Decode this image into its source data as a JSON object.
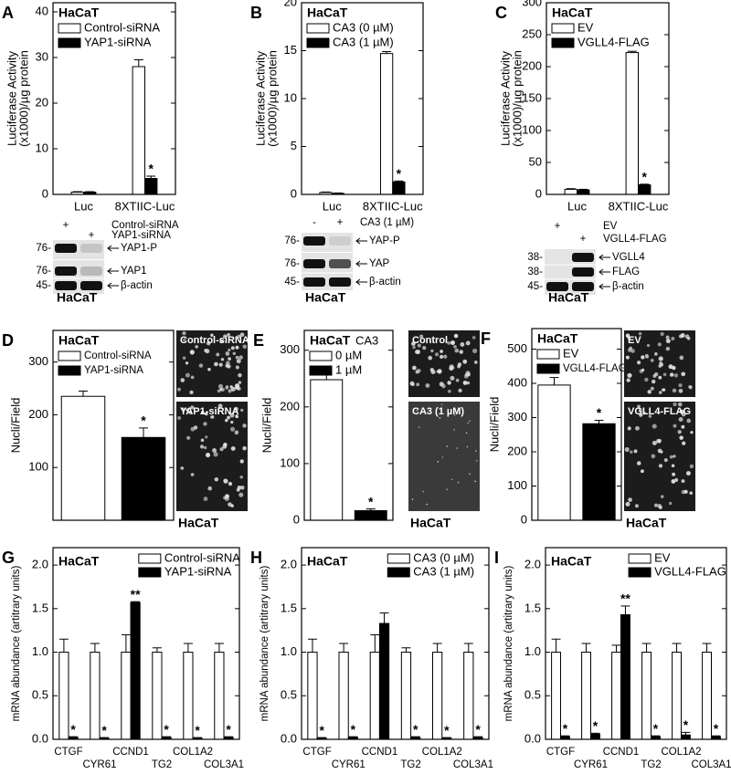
{
  "chart_data": [
    {
      "panel": "A",
      "type": "bar",
      "title": "HaCaT",
      "ylabel": [
        "Luciferase Activity",
        "(x1000)/µg protein"
      ],
      "categories": [
        "Luc",
        "8XTIIC-Luc"
      ],
      "series": [
        {
          "name": "Control-siRNA",
          "color": "#ffffff",
          "values": [
            0.5,
            28
          ],
          "errors": [
            0.1,
            1.5
          ],
          "marks": [
            null,
            null
          ]
        },
        {
          "name": "YAP1-siRNA",
          "color": "#000000",
          "values": [
            0.5,
            3.5
          ],
          "errors": [
            0.1,
            0.5
          ],
          "marks": [
            null,
            "*"
          ]
        }
      ],
      "ylim": [
        0,
        42
      ],
      "yticks": [
        0,
        10,
        20,
        30,
        40
      ],
      "legend": "upper left"
    },
    {
      "panel": "B",
      "type": "bar",
      "title": "HaCaT",
      "ylabel": [
        "Luciferase Activity",
        "(x1000)/µg protein"
      ],
      "categories": [
        "Luc",
        "8XTIIC-Luc"
      ],
      "series": [
        {
          "name": "CA3 (0 µM)",
          "color": "#ffffff",
          "values": [
            0.2,
            14.7
          ],
          "errors": [
            0.05,
            0.2
          ],
          "marks": [
            null,
            null
          ]
        },
        {
          "name": "CA3 (1 µM)",
          "color": "#000000",
          "values": [
            0.1,
            1.3
          ],
          "errors": [
            0.05,
            0.1
          ],
          "marks": [
            null,
            "*"
          ]
        }
      ],
      "ylim": [
        0,
        20
      ],
      "yticks": [
        0,
        5,
        10,
        15,
        20
      ],
      "legend": "upper left"
    },
    {
      "panel": "C",
      "type": "bar",
      "title": "HaCaT",
      "ylabel": [
        "Luciferase Activity",
        "(x1000)/µg protein"
      ],
      "categories": [
        "Luc",
        "8XTIIC-Luc"
      ],
      "series": [
        {
          "name": "EV",
          "color": "#ffffff",
          "values": [
            8,
            222
          ],
          "errors": [
            1,
            2
          ],
          "marks": [
            null,
            null
          ]
        },
        {
          "name": "VGLL4-FLAG",
          "color": "#000000",
          "values": [
            7,
            15
          ],
          "errors": [
            1,
            1
          ],
          "marks": [
            null,
            "*"
          ]
        }
      ],
      "ylim": [
        0,
        300
      ],
      "yticks": [
        0,
        50,
        100,
        150,
        200,
        250,
        300
      ],
      "legend": "upper left"
    },
    {
      "panel": "D",
      "type": "bar",
      "title": "HaCaT",
      "ylabel": [
        "Nucli/Field"
      ],
      "categories": [
        null
      ],
      "series": [
        {
          "name": "Control-siRNA",
          "color": "#ffffff",
          "values": [
            235
          ],
          "errors": [
            10
          ],
          "marks": [
            null
          ]
        },
        {
          "name": "YAP1-siRNA",
          "color": "#000000",
          "values": [
            157
          ],
          "errors": [
            18
          ],
          "marks": [
            "*"
          ]
        }
      ],
      "ylim": [
        0,
        360
      ],
      "yticks": [
        100,
        200,
        300
      ],
      "legend": "upper left"
    },
    {
      "panel": "E",
      "type": "bar",
      "title": "HaCaT",
      "legend_title": "CA3",
      "ylabel": [
        "Nucli/Field"
      ],
      "categories": [
        null
      ],
      "series": [
        {
          "name": "0 µM",
          "color": "#ffffff",
          "values": [
            248
          ],
          "errors": [
            10
          ],
          "marks": [
            null
          ]
        },
        {
          "name": "1 µM",
          "color": "#000000",
          "values": [
            17
          ],
          "errors": [
            3
          ],
          "marks": [
            "*"
          ]
        }
      ],
      "ylim": [
        0,
        335
      ],
      "yticks": [
        0,
        100,
        200,
        300
      ],
      "legend": "upper left"
    },
    {
      "panel": "F",
      "type": "bar",
      "title": "HaCaT",
      "ylabel": [
        "Nucli/Field"
      ],
      "categories": [
        null
      ],
      "series": [
        {
          "name": "EV",
          "color": "#ffffff",
          "values": [
            395
          ],
          "errors": [
            22
          ],
          "marks": [
            null
          ]
        },
        {
          "name": "VGLL4-FLAG",
          "color": "#000000",
          "values": [
            282
          ],
          "errors": [
            10
          ],
          "marks": [
            "*"
          ]
        }
      ],
      "ylim": [
        0,
        560
      ],
      "yticks": [
        0,
        100,
        200,
        300,
        400,
        500
      ],
      "legend": "upper left"
    },
    {
      "panel": "G",
      "type": "bar",
      "title": "HaCaT",
      "ylabel": [
        "mRNA abundance (artitrary units)"
      ],
      "categories": [
        "CTGF",
        "CYR61",
        "CCND1",
        "TG2",
        "COL1A2",
        "COL3A1"
      ],
      "series": [
        {
          "name": "Control-siRNA",
          "color": "#ffffff",
          "values": [
            1.0,
            1.0,
            1.0,
            1.0,
            1.0,
            1.0
          ],
          "errors": [
            0.15,
            0.1,
            0.2,
            0.05,
            0.1,
            0.1
          ],
          "marks": [
            null,
            null,
            null,
            null,
            null,
            null
          ]
        },
        {
          "name": "YAP1-siRNA",
          "color": "#000000",
          "values": [
            0.02,
            0.01,
            1.57,
            0.02,
            0.01,
            0.02
          ],
          "errors": [
            0.01,
            0.01,
            0.01,
            0.01,
            0.01,
            0.01
          ],
          "marks": [
            "*",
            "*",
            "**",
            "*",
            "*",
            "*"
          ]
        }
      ],
      "ylim": [
        0,
        2.2
      ],
      "yticks": [
        {
          "value": 0,
          "label": "0.0"
        },
        0.5,
        {
          "value": 1,
          "label": "1.0"
        },
        1.5,
        {
          "value": 2,
          "label": "2.0"
        }
      ],
      "legend": "upper right"
    },
    {
      "panel": "H",
      "type": "bar",
      "title": "HaCaT",
      "ylabel": [
        "mRNA abundance (artitrary units)"
      ],
      "categories": [
        "CTGF",
        "CYR61",
        "CCND1",
        "TG2",
        "COL1A2",
        "COL3A1"
      ],
      "series": [
        {
          "name": "CA3 (0 µM)",
          "color": "#ffffff",
          "values": [
            1.0,
            1.0,
            1.0,
            1.0,
            1.0,
            1.0
          ],
          "errors": [
            0.15,
            0.1,
            0.2,
            0.05,
            0.1,
            0.1
          ],
          "marks": [
            null,
            null,
            null,
            null,
            null,
            null
          ]
        },
        {
          "name": "CA3 (1 µM)",
          "color": "#000000",
          "values": [
            0.01,
            0.02,
            1.33,
            0.02,
            0.01,
            0.02
          ],
          "errors": [
            0.01,
            0.01,
            0.12,
            0.01,
            0.01,
            0.01
          ],
          "marks": [
            "*",
            "*",
            null,
            "*",
            "*",
            "*"
          ]
        }
      ],
      "ylim": [
        0,
        2.2
      ],
      "yticks": [
        {
          "value": 0,
          "label": "0.0"
        },
        0.5,
        {
          "value": 1,
          "label": "1.0"
        },
        1.5,
        {
          "value": 2,
          "label": "2.0"
        }
      ],
      "legend": "upper right"
    },
    {
      "panel": "I",
      "type": "bar",
      "title": "HaCaT",
      "ylabel": [
        "mRNA abundance (artitrary units)"
      ],
      "categories": [
        "CTGF",
        "CYR61",
        "CCND1",
        "TG2",
        "COL1A2",
        "COL3A1"
      ],
      "series": [
        {
          "name": "EV",
          "color": "#ffffff",
          "values": [
            1.0,
            1.0,
            1.0,
            1.0,
            1.0,
            1.0
          ],
          "errors": [
            0.15,
            0.1,
            0.08,
            0.1,
            0.1,
            0.1
          ],
          "marks": [
            null,
            null,
            null,
            null,
            null,
            null
          ]
        },
        {
          "name": "VGLL4-FLAG",
          "color": "#000000",
          "values": [
            0.03,
            0.06,
            1.43,
            0.03,
            0.05,
            0.03
          ],
          "errors": [
            0.01,
            0.01,
            0.1,
            0.01,
            0.03,
            0.01
          ],
          "marks": [
            "*",
            "*",
            "**",
            "*",
            "*",
            "*"
          ]
        }
      ],
      "ylim": [
        0,
        2.2
      ],
      "yticks": [
        {
          "value": 0,
          "label": "0.0"
        },
        0.5,
        {
          "value": 1,
          "label": "1.0"
        },
        1.5,
        {
          "value": 2,
          "label": "2.0"
        }
      ],
      "legend": "upper right"
    }
  ],
  "blots": [
    {
      "header": [
        [
          "+",
          null,
          "Control-siRNA"
        ],
        [
          null,
          "+",
          "YAP1-siRNA"
        ]
      ],
      "bands": [
        {
          "marker": "76-",
          "label": "YAP1-P"
        },
        {
          "marker": "76-",
          "label": "YAP1"
        },
        {
          "marker": "45-",
          "label": "β-actin"
        }
      ],
      "cell": "HaCaT"
    },
    {
      "header": [
        [
          "-",
          "+",
          "CA3 (1 µM)"
        ]
      ],
      "bands": [
        {
          "marker": "76-",
          "label": "YAP-P"
        },
        {
          "marker": "76-",
          "label": "YAP"
        },
        {
          "marker": "45-",
          "label": "β-actin"
        }
      ],
      "cell": "HaCaT"
    },
    {
      "header": [
        [
          "+",
          null,
          "EV"
        ],
        [
          null,
          "+",
          "VGLL4-FLAG"
        ]
      ],
      "bands": [
        {
          "marker": "38-",
          "label": "VGLL4"
        },
        {
          "marker": "38-",
          "label": "FLAG"
        },
        {
          "marker": "45-",
          "label": "β-actin"
        }
      ],
      "cell": "HaCaT"
    }
  ],
  "micrographs": [
    {
      "images": [
        "Control-siRNA",
        "YAP1-siRNA"
      ],
      "cell": "HaCaT"
    },
    {
      "images": [
        "Control",
        "CA3 (1 µM)"
      ],
      "cell": "HaCaT"
    },
    {
      "images": [
        "EV",
        "VGLL4-FLAG"
      ],
      "cell": "HaCaT"
    }
  ]
}
